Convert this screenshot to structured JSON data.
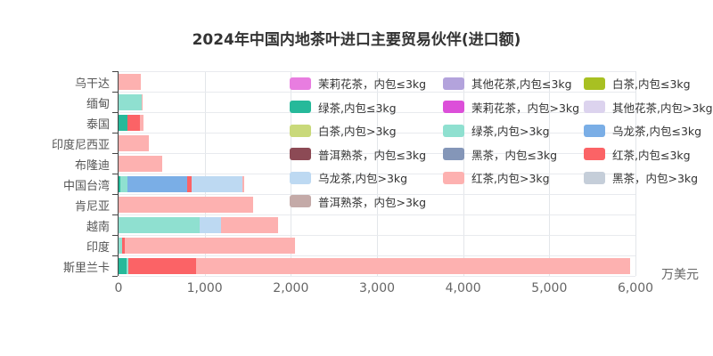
{
  "title": "2024年中国内地茶叶进口主要贸易伙伴(进口额)",
  "chart_data": {
    "type": "bar",
    "orientation": "horizontal",
    "stacked": true,
    "title": "2024年中国内地茶叶进口主要贸易伙伴(进口额)",
    "xlabel": "万美元",
    "ylabel": "",
    "xlim": [
      0,
      6000
    ],
    "x_ticks": [
      "0",
      "1,000",
      "2,000",
      "3,000",
      "4,000",
      "5,000",
      "6,000"
    ],
    "grid": true,
    "legend_position": "top-right inside plot",
    "categories": [
      "乌干达",
      "缅甸",
      "泰国",
      "印度尼西亚",
      "布隆迪",
      "中国台湾",
      "肯尼亚",
      "越南",
      "印度",
      "斯里兰卡"
    ],
    "series": [
      {
        "name": "茉莉花茶，内包≤3kg",
        "color": "#e87de0",
        "values": [
          0,
          0,
          0,
          0,
          0,
          0,
          0,
          0,
          0,
          0
        ]
      },
      {
        "name": "其他花茶,内包≤3kg",
        "color": "#b3a3dc",
        "values": [
          0,
          0,
          0,
          0,
          0,
          0,
          0,
          0,
          0,
          0
        ]
      },
      {
        "name": "白茶,内包≤3kg",
        "color": "#a8c022",
        "values": [
          0,
          0,
          0,
          0,
          0,
          0,
          0,
          0,
          0,
          0
        ]
      },
      {
        "name": "绿茶,内包≤3kg",
        "color": "#26b99a",
        "values": [
          0,
          0,
          100,
          0,
          0,
          20,
          0,
          0,
          0,
          90
        ]
      },
      {
        "name": "茉莉花茶，内包>3kg",
        "color": "#dc4fd9",
        "values": [
          0,
          0,
          0,
          0,
          0,
          0,
          0,
          0,
          0,
          0
        ]
      },
      {
        "name": "其他花茶,内包>3kg",
        "color": "#dcd3ee",
        "values": [
          0,
          0,
          0,
          0,
          0,
          0,
          0,
          0,
          0,
          0
        ]
      },
      {
        "name": "白茶,内包>3kg",
        "color": "#c9d97a",
        "values": [
          0,
          0,
          0,
          0,
          0,
          0,
          0,
          0,
          0,
          0
        ]
      },
      {
        "name": "绿茶,内包>3kg",
        "color": "#8fe0d0",
        "values": [
          0,
          270,
          0,
          0,
          0,
          80,
          0,
          940,
          40,
          20
        ]
      },
      {
        "name": "乌龙茶,内包≤3kg",
        "color": "#7aaee6",
        "values": [
          0,
          0,
          0,
          0,
          0,
          700,
          0,
          0,
          0,
          0
        ]
      },
      {
        "name": "普洱熟茶，内包≤3kg",
        "color": "#8c4a55",
        "values": [
          0,
          0,
          0,
          0,
          0,
          0,
          0,
          0,
          0,
          0
        ]
      },
      {
        "name": "黑茶，内包≤3kg",
        "color": "#8496b8",
        "values": [
          0,
          0,
          0,
          0,
          0,
          0,
          0,
          0,
          0,
          0
        ]
      },
      {
        "name": "红茶,内包≤3kg",
        "color": "#fb6366",
        "values": [
          0,
          0,
          145,
          0,
          0,
          50,
          0,
          0,
          30,
          790
        ]
      },
      {
        "name": "乌龙茶,内包>3kg",
        "color": "#bdd9f2",
        "values": [
          0,
          0,
          0,
          0,
          0,
          590,
          0,
          250,
          0,
          0
        ]
      },
      {
        "name": "红茶,内包>3kg",
        "color": "#fdb1b0",
        "values": [
          260,
          10,
          40,
          350,
          505,
          20,
          1560,
          660,
          1980,
          5036
        ]
      },
      {
        "name": "黑茶，内包>3kg",
        "color": "#c5ced9",
        "values": [
          0,
          0,
          0,
          0,
          0,
          0,
          0,
          0,
          0,
          0
        ]
      },
      {
        "name": "普洱熟茶，内包>3kg",
        "color": "#c4aaa8",
        "values": [
          0,
          0,
          0,
          0,
          0,
          0,
          0,
          0,
          0,
          0
        ]
      }
    ],
    "totals_approx": {
      "乌干达": 260,
      "缅甸": 280,
      "泰国": 285,
      "印度尼西亚": 350,
      "布隆迪": 505,
      "中国台湾": 1460,
      "肯尼亚": 1560,
      "越南": 1850,
      "印度": 2050,
      "斯里兰卡": 5936
    }
  }
}
